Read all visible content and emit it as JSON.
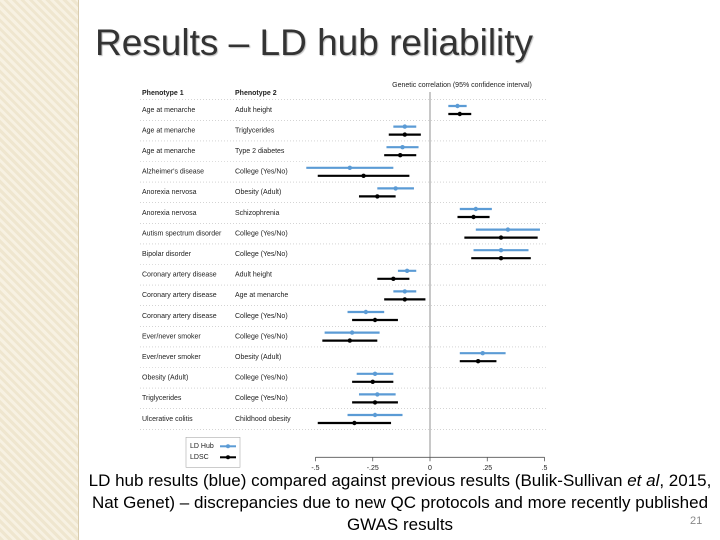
{
  "title": "Results – LD hub reliability",
  "chart_data": {
    "type": "forest",
    "columns": [
      "Phenotype 1",
      "Phenotype 2"
    ],
    "x_label": "Genetic correlation (95% confidence interval)",
    "phenotype_1": [
      "Age at menarche",
      "Age at menarche",
      "Age at menarche",
      "Alzheimer's disease",
      "Anorexia nervosa",
      "Anorexia nervosa",
      "Autism spectrum disorder",
      "Bipolar disorder",
      "Coronary artery disease",
      "Coronary artery disease",
      "Coronary artery disease",
      "Ever/never smoker",
      "Ever/never smoker",
      "Obesity (Adult)",
      "Triglycerides",
      "Ulcerative colitis"
    ],
    "phenotype_2": [
      "Adult height",
      "Triglycerides",
      "Type 2 diabetes",
      "College (Yes/No)",
      "Obesity (Adult)",
      "Schizophrenia",
      "College (Yes/No)",
      "College (Yes/No)",
      "Adult height",
      "Age at menarche",
      "College (Yes/No)",
      "College (Yes/No)",
      "Obesity (Adult)",
      "College (Yes/No)",
      "College (Yes/No)",
      "Childhood obesity"
    ],
    "series": [
      {
        "name": "LD Hub",
        "color": "#5b9bd5",
        "values": [
          0.12,
          -0.11,
          -0.12,
          -0.35,
          -0.15,
          0.2,
          0.34,
          0.31,
          -0.1,
          -0.11,
          -0.28,
          -0.34,
          0.23,
          -0.24,
          -0.23,
          -0.24
        ],
        "errors": [
          0.04,
          0.05,
          0.07,
          0.19,
          0.08,
          0.07,
          0.14,
          0.12,
          0.04,
          0.05,
          0.08,
          0.12,
          0.1,
          0.08,
          0.08,
          0.12
        ]
      },
      {
        "name": "LDSC",
        "color": "#000000",
        "values": [
          0.13,
          -0.11,
          -0.13,
          -0.29,
          -0.23,
          0.19,
          0.31,
          0.31,
          -0.16,
          -0.11,
          -0.24,
          -0.35,
          0.21,
          -0.25,
          -0.24,
          -0.33
        ],
        "errors": [
          0.05,
          0.07,
          0.07,
          0.2,
          0.08,
          0.07,
          0.16,
          0.13,
          0.07,
          0.09,
          0.1,
          0.12,
          0.08,
          0.09,
          0.1,
          0.16
        ]
      }
    ],
    "xlim": [
      -0.55,
      0.55
    ],
    "xticks": [
      {
        "value": -0.5,
        "label": "-.5"
      },
      {
        "value": -0.25,
        "label": "-.25"
      },
      0,
      {
        "value": 0.25,
        "label": ".25"
      },
      {
        "value": 0.5,
        "label": ".5"
      }
    ]
  },
  "caption": [
    "LD hub results (blue) compared against previous results (Bulik-Sullivan ",
    "et al",
    ", 2015, Nat Genet) – discrepancies due to new QC protocols and more recently published GWAS results"
  ],
  "slide_number": "21"
}
